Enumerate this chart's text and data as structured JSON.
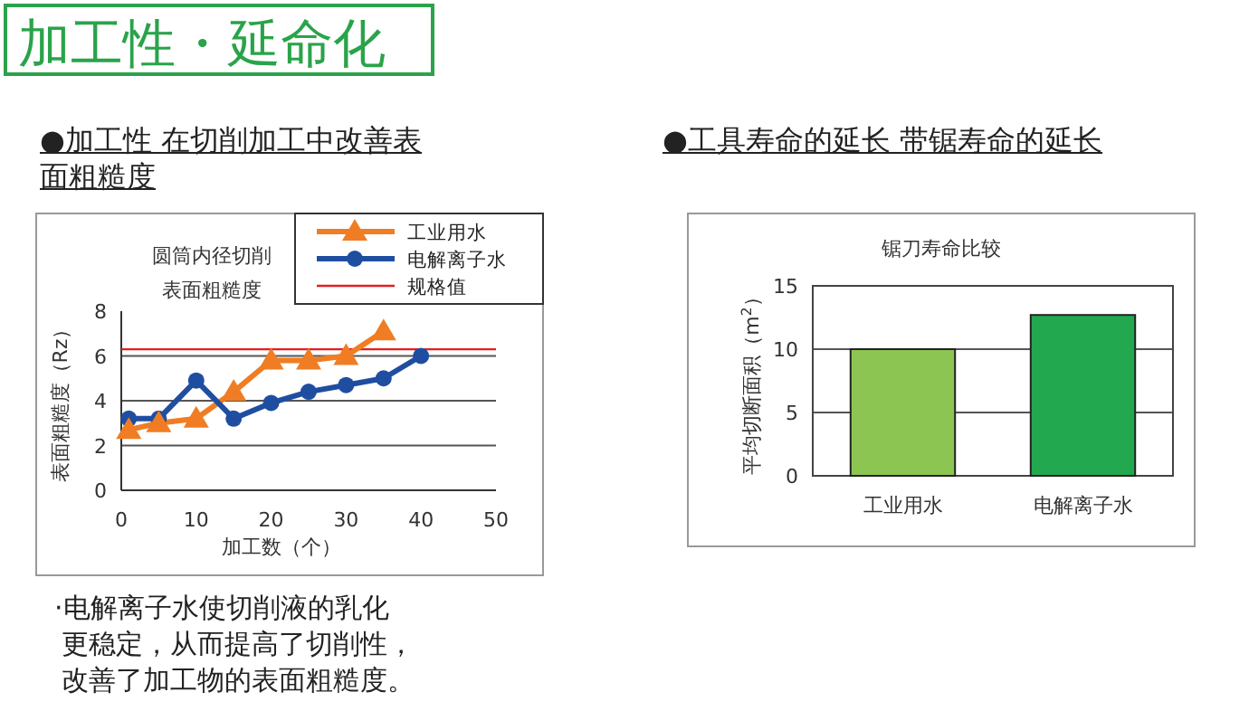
{
  "chart_data": [
    {
      "type": "line",
      "title": "圆筒内径切削表面粗糙度",
      "subtitle": "●加工性  在切削加工中改善表面粗糙度",
      "xlabel": "加工数（个）",
      "ylabel": "表面粗糙度（Rz）",
      "annotations": [
        "加工性・延命化",
        "·电解离子水使切削液的乳化更稳定，从而提高了切削性，改善了加工物的表面粗糙度。"
      ],
      "x": [
        1,
        5,
        10,
        15,
        20,
        25,
        30,
        35,
        40
      ],
      "series": [
        {
          "name": "工业用水",
          "color": "#f07d23",
          "marker": "triangle",
          "values": [
            2.7,
            3.0,
            3.2,
            4.4,
            5.8,
            5.8,
            6.0,
            7.1,
            null
          ]
        },
        {
          "name": "电解离子水",
          "color": "#1f4ea1",
          "marker": "circle",
          "values": [
            3.2,
            3.2,
            4.9,
            3.2,
            3.9,
            4.4,
            4.7,
            5.0,
            6.0
          ]
        }
      ],
      "ref_lines": [
        {
          "axis": "y",
          "value": 6.3,
          "label": "规格值",
          "color": "#e02020"
        }
      ],
      "xlim": [
        0,
        50
      ],
      "xticks": [
        0,
        10,
        20,
        30,
        40,
        50
      ],
      "ylim": [
        0,
        8
      ],
      "yticks": [
        0,
        2,
        4,
        6,
        8
      ],
      "grid": "y",
      "legend": "top right"
    },
    {
      "type": "bar",
      "title": "锯刀寿命比较",
      "subtitle": "●工具寿命的延长  带锯寿命的延长",
      "ylabel": "平均切断面积（m$^{2}$）",
      "categories": [
        "工业用水",
        "电解离子水"
      ],
      "values": [
        10.0,
        12.7
      ],
      "colors": [
        "#8dc553",
        "#22a84f"
      ],
      "ylim": [
        0,
        15
      ],
      "yticks": [
        0,
        5,
        10,
        15
      ],
      "grid": "y"
    }
  ]
}
